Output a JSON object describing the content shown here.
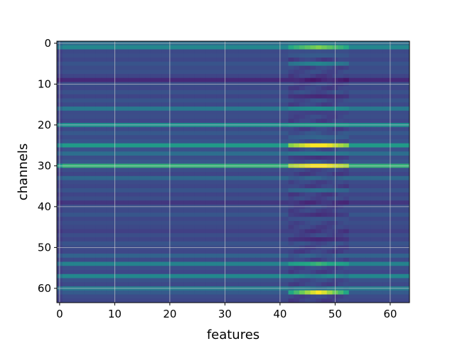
{
  "chart_data": {
    "type": "heatmap",
    "title": "",
    "xlabel": "features",
    "ylabel": "channels",
    "xlim": [
      -0.5,
      63.5
    ],
    "ylim": [
      63.5,
      -0.5
    ],
    "xticks": [
      "0",
      "10",
      "20",
      "30",
      "40",
      "50",
      "60"
    ],
    "yticks": [
      "0",
      "10",
      "20",
      "30",
      "40",
      "50",
      "60"
    ],
    "grid": true,
    "colormap": "viridis",
    "n_channels": 64,
    "n_features": 64,
    "row_base": [
      0.45,
      0.58,
      0.28,
      0.3,
      0.27,
      0.33,
      0.29,
      0.31,
      0.26,
      0.15,
      0.3,
      0.27,
      0.32,
      0.26,
      0.33,
      0.28,
      0.5,
      0.29,
      0.3,
      0.27,
      0.62,
      0.28,
      0.35,
      0.29,
      0.33,
      0.68,
      0.31,
      0.45,
      0.3,
      0.34,
      0.78,
      0.3,
      0.26,
      0.42,
      0.29,
      0.27,
      0.33,
      0.26,
      0.3,
      0.2,
      0.3,
      0.28,
      0.34,
      0.27,
      0.3,
      0.28,
      0.24,
      0.3,
      0.26,
      0.33,
      0.29,
      0.27,
      0.4,
      0.28,
      0.55,
      0.3,
      0.27,
      0.58,
      0.32,
      0.28,
      0.52,
      0.36,
      0.29,
      0.27
    ],
    "col_range": [
      42,
      52
    ],
    "row_bump": [
      0.05,
      0.25,
      0.02,
      0.05,
      0.0,
      0.2,
      0.0,
      0.0,
      0.0,
      0.0,
      0.0,
      0.0,
      0.0,
      -0.1,
      0.0,
      0.0,
      0.1,
      -0.05,
      0.0,
      0.0,
      0.05,
      0.0,
      0.0,
      0.1,
      0.0,
      0.3,
      0.0,
      0.05,
      -0.1,
      0.0,
      0.2,
      0.0,
      0.0,
      0.0,
      0.0,
      0.0,
      0.1,
      0.0,
      0.0,
      0.0,
      0.0,
      0.0,
      -0.15,
      0.05,
      0.0,
      0.0,
      0.0,
      0.0,
      -0.1,
      0.0,
      0.0,
      0.0,
      0.0,
      0.0,
      0.2,
      0.0,
      0.0,
      0.0,
      0.0,
      0.0,
      0.0,
      0.55,
      0.0,
      0.0
    ]
  }
}
